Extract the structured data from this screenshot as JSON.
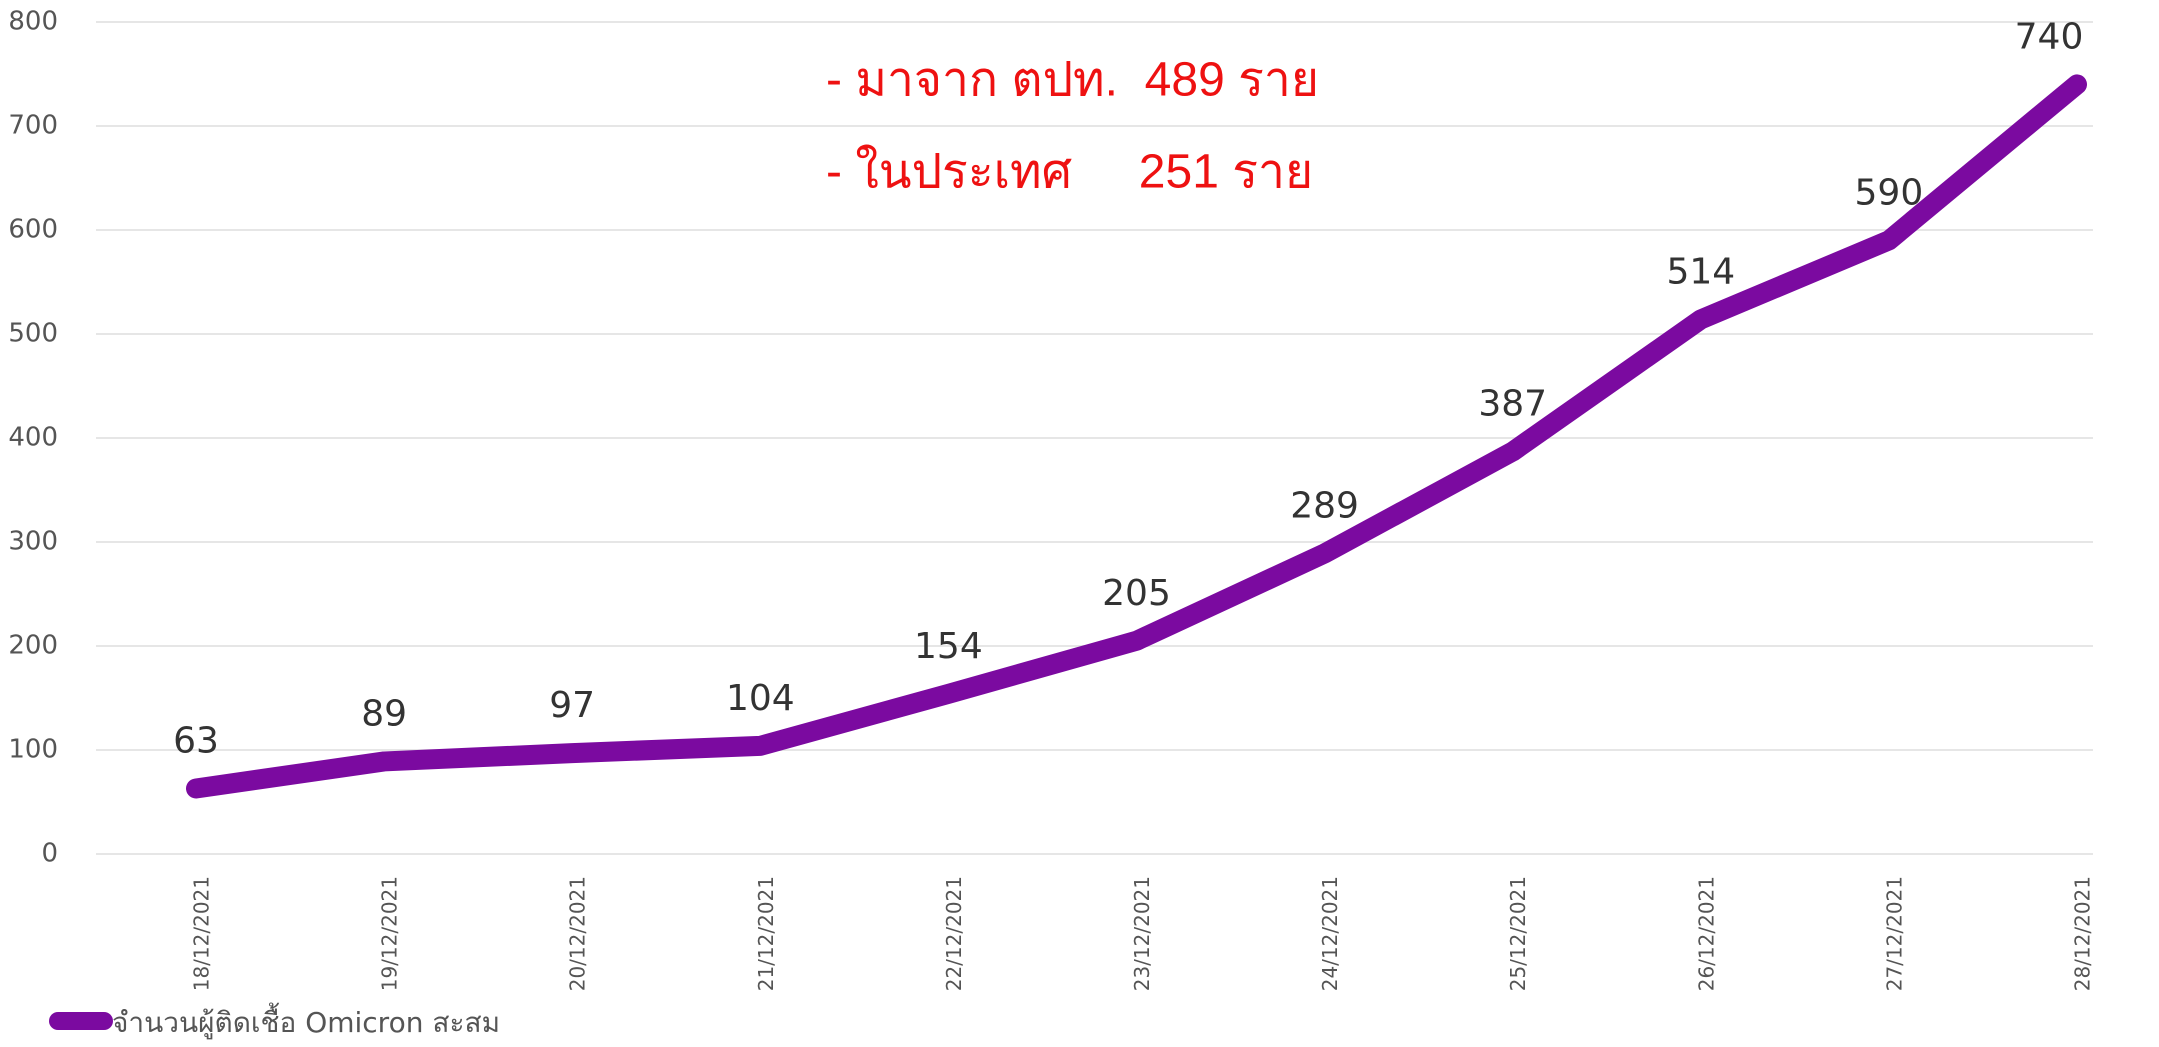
{
  "chart_data": {
    "type": "line",
    "categories": [
      "18/12/2021",
      "19/12/2021",
      "20/12/2021",
      "21/12/2021",
      "22/12/2021",
      "23/12/2021",
      "24/12/2021",
      "25/12/2021",
      "26/12/2021",
      "27/12/2021",
      "28/12/2021"
    ],
    "series": [
      {
        "name": "จำนวนผู้ติดเชื้อ Omicron สะสม",
        "color": "#7b0aa0",
        "values": [
          63,
          89,
          97,
          104,
          154,
          205,
          289,
          387,
          514,
          590,
          740
        ]
      }
    ],
    "ylim": [
      0,
      800
    ],
    "yticks": [
      0,
      100,
      200,
      300,
      400,
      500,
      600,
      700,
      800
    ],
    "grid": true,
    "legend": "bottom-left",
    "annotations": [
      "- มาจาก ตปท.  489 ราย",
      "- ในประเทศ     251 ราย"
    ]
  }
}
